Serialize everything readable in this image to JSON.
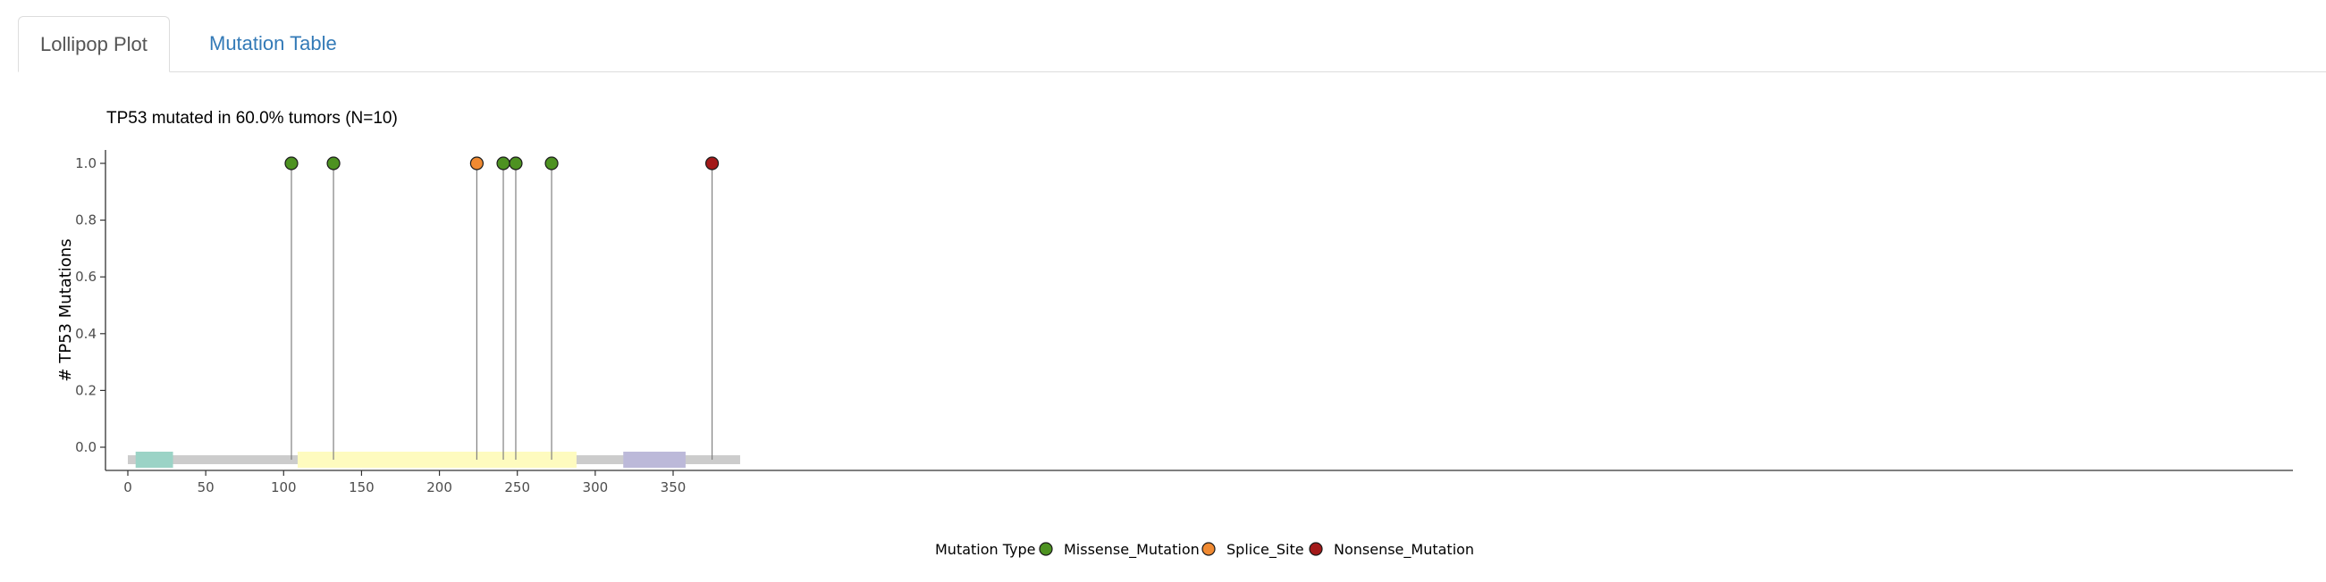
{
  "tabs": [
    {
      "label": "Lollipop Plot",
      "active": true
    },
    {
      "label": "Mutation Table",
      "active": false
    }
  ],
  "chart_data": {
    "type": "lollipop",
    "title": "TP53 mutated in 60.0% tumors (N=10)",
    "ylabel": "# TP53 Mutations",
    "xlabel": "",
    "xlim": [
      0,
      393
    ],
    "ylim": [
      0,
      1
    ],
    "xticks": [
      0,
      50,
      100,
      150,
      200,
      250,
      300,
      350
    ],
    "yticks": [
      "0.0",
      "0.2",
      "0.4",
      "0.6",
      "0.8",
      "1.0"
    ],
    "protein_length": 393,
    "domains": [
      {
        "start": 5,
        "end": 29,
        "color": "#9bd3c6"
      },
      {
        "start": 109,
        "end": 288,
        "color": "#fefbbf"
      },
      {
        "start": 318,
        "end": 358,
        "color": "#bcb9d9"
      }
    ],
    "mutations": [
      {
        "position": 105,
        "count": 1,
        "type": "Missense_Mutation"
      },
      {
        "position": 132,
        "count": 1,
        "type": "Missense_Mutation"
      },
      {
        "position": 224,
        "count": 1,
        "type": "Splice_Site"
      },
      {
        "position": 241,
        "count": 1,
        "type": "Missense_Mutation"
      },
      {
        "position": 249,
        "count": 1,
        "type": "Missense_Mutation"
      },
      {
        "position": 272,
        "count": 1,
        "type": "Missense_Mutation"
      },
      {
        "position": 375,
        "count": 1,
        "type": "Nonsense_Mutation"
      }
    ],
    "legend": {
      "title": "Mutation Type",
      "position": "bottom",
      "entries": [
        {
          "label": "Missense_Mutation",
          "color": "#4d9221"
        },
        {
          "label": "Splice_Site",
          "color": "#f08a32"
        },
        {
          "label": "Nonsense_Mutation",
          "color": "#a31919"
        }
      ]
    },
    "colors": {
      "backbone": "#cccccc",
      "stem": "#808080",
      "axis": "#333333"
    }
  }
}
